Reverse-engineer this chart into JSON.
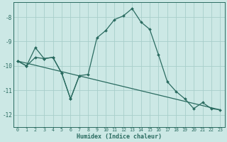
{
  "xlabel": "Humidex (Indice chaleur)",
  "bg_color": "#cce8e5",
  "grid_color": "#a8ceca",
  "line_color": "#2a6b60",
  "xlim": [
    -0.5,
    23.5
  ],
  "ylim": [
    -12.5,
    -7.4
  ],
  "yticks": [
    -12,
    -11,
    -10,
    -9,
    -8
  ],
  "xticks": [
    0,
    1,
    2,
    3,
    4,
    5,
    6,
    7,
    8,
    9,
    10,
    11,
    12,
    13,
    14,
    15,
    16,
    17,
    18,
    19,
    20,
    21,
    22,
    23
  ],
  "line1_x": [
    0,
    1,
    2,
    3,
    4,
    5,
    6,
    7,
    8,
    9,
    10,
    11,
    12,
    13,
    14,
    15,
    16,
    17,
    18,
    19,
    20,
    21,
    22,
    23
  ],
  "line1_y": [
    -9.8,
    -10.0,
    -9.25,
    -9.7,
    -9.65,
    -10.3,
    -11.35,
    -10.4,
    -10.35,
    -8.85,
    -8.55,
    -8.1,
    -7.95,
    -7.65,
    -8.2,
    -8.5,
    -9.55,
    -10.65,
    -11.05,
    -11.35,
    -11.75,
    -11.5,
    -11.75,
    -11.8
  ],
  "line2_x": [
    0,
    1,
    2,
    3,
    4,
    5,
    6,
    7,
    8,
    9,
    10,
    11,
    12,
    13,
    14,
    15,
    16,
    17,
    18,
    19,
    20,
    21,
    22,
    23
  ],
  "line2_y": [
    -9.8,
    -10.0,
    -9.65,
    -9.7,
    -9.65,
    -10.3,
    -11.35,
    -10.4,
    -10.35,
    -10.1,
    -10.25,
    -10.4,
    -10.5,
    -10.6,
    -10.7,
    -10.8,
    -10.9,
    -11.0,
    -11.1,
    -11.2,
    -11.35,
    -11.5,
    -11.75,
    -11.8
  ],
  "line3_x": [
    0,
    23
  ],
  "line3_y": [
    -9.8,
    -11.8
  ]
}
